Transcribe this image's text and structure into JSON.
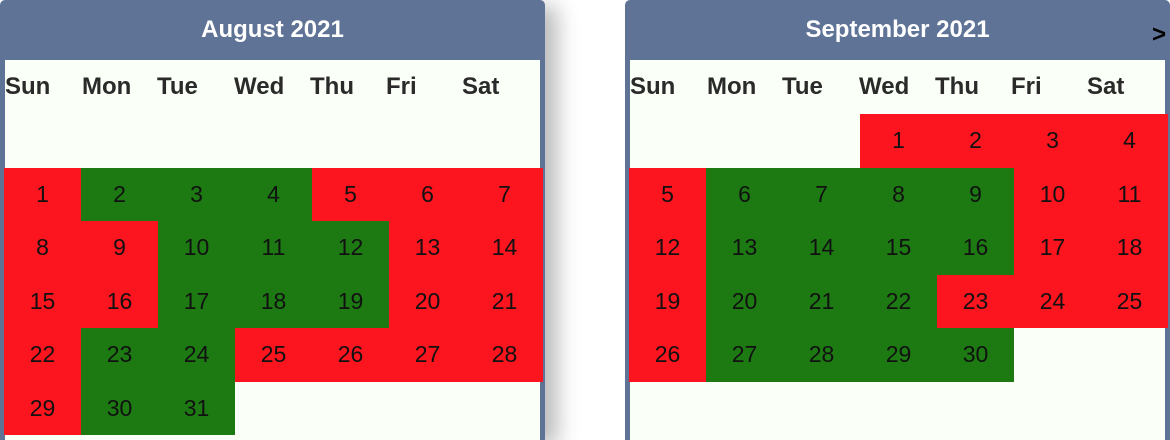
{
  "calendars": [
    {
      "title": "August 2021",
      "weekdays": [
        "Sun",
        "Mon",
        "Tue",
        "Wed",
        "Thu",
        "Fri",
        "Sat"
      ],
      "first_weekday": 0,
      "leading_blank_row": true,
      "days": [
        {
          "day": "1",
          "status": "red"
        },
        {
          "day": "2",
          "status": "green"
        },
        {
          "day": "3",
          "status": "green"
        },
        {
          "day": "4",
          "status": "green"
        },
        {
          "day": "5",
          "status": "red"
        },
        {
          "day": "6",
          "status": "red"
        },
        {
          "day": "7",
          "status": "red"
        },
        {
          "day": "8",
          "status": "red"
        },
        {
          "day": "9",
          "status": "red"
        },
        {
          "day": "10",
          "status": "green"
        },
        {
          "day": "11",
          "status": "green"
        },
        {
          "day": "12",
          "status": "green"
        },
        {
          "day": "13",
          "status": "red"
        },
        {
          "day": "14",
          "status": "red"
        },
        {
          "day": "15",
          "status": "red"
        },
        {
          "day": "16",
          "status": "red"
        },
        {
          "day": "17",
          "status": "green"
        },
        {
          "day": "18",
          "status": "green"
        },
        {
          "day": "19",
          "status": "green"
        },
        {
          "day": "20",
          "status": "red"
        },
        {
          "day": "21",
          "status": "red"
        },
        {
          "day": "22",
          "status": "red"
        },
        {
          "day": "23",
          "status": "green"
        },
        {
          "day": "24",
          "status": "green"
        },
        {
          "day": "25",
          "status": "red"
        },
        {
          "day": "26",
          "status": "red"
        },
        {
          "day": "27",
          "status": "red"
        },
        {
          "day": "28",
          "status": "red"
        },
        {
          "day": "29",
          "status": "red"
        },
        {
          "day": "30",
          "status": "green"
        },
        {
          "day": "31",
          "status": "green"
        }
      ]
    },
    {
      "title": "September 2021",
      "next_label": ">",
      "weekdays": [
        "Sun",
        "Mon",
        "Tue",
        "Wed",
        "Thu",
        "Fri",
        "Sat"
      ],
      "first_weekday": 3,
      "leading_blank_row": false,
      "days": [
        {
          "day": "1",
          "status": "red"
        },
        {
          "day": "2",
          "status": "red"
        },
        {
          "day": "3",
          "status": "red"
        },
        {
          "day": "4",
          "status": "red"
        },
        {
          "day": "5",
          "status": "red"
        },
        {
          "day": "6",
          "status": "green"
        },
        {
          "day": "7",
          "status": "green"
        },
        {
          "day": "8",
          "status": "green"
        },
        {
          "day": "9",
          "status": "green"
        },
        {
          "day": "10",
          "status": "red"
        },
        {
          "day": "11",
          "status": "red"
        },
        {
          "day": "12",
          "status": "red"
        },
        {
          "day": "13",
          "status": "green"
        },
        {
          "day": "14",
          "status": "green"
        },
        {
          "day": "15",
          "status": "green"
        },
        {
          "day": "16",
          "status": "green"
        },
        {
          "day": "17",
          "status": "red"
        },
        {
          "day": "18",
          "status": "red"
        },
        {
          "day": "19",
          "status": "red"
        },
        {
          "day": "20",
          "status": "green"
        },
        {
          "day": "21",
          "status": "green"
        },
        {
          "day": "22",
          "status": "green"
        },
        {
          "day": "23",
          "status": "red"
        },
        {
          "day": "24",
          "status": "red"
        },
        {
          "day": "25",
          "status": "red"
        },
        {
          "day": "26",
          "status": "red"
        },
        {
          "day": "27",
          "status": "green"
        },
        {
          "day": "28",
          "status": "green"
        },
        {
          "day": "29",
          "status": "green"
        },
        {
          "day": "30",
          "status": "green"
        }
      ]
    }
  ],
  "colors": {
    "header_bg": "#5f7396",
    "grid_bg": "#fafff7",
    "red": "#fc141e",
    "green": "#1d7a13"
  }
}
